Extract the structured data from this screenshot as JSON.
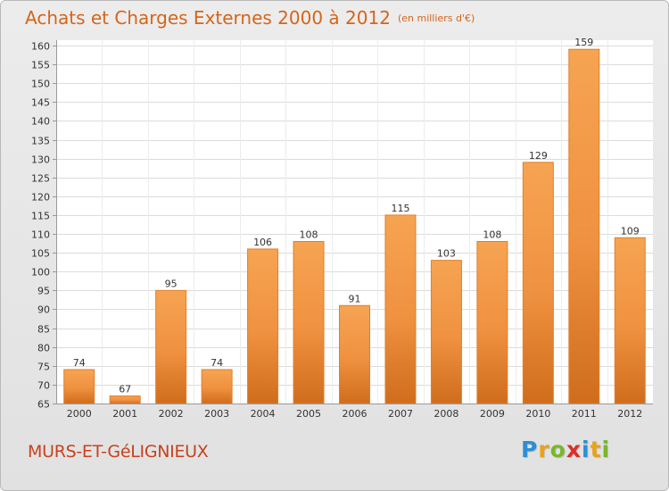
{
  "header": {
    "title": "Achats et Charges Externes 2000 à 2012",
    "subtitle": "(en milliers d'€)"
  },
  "footer": {
    "city": "MURS-ET-GéLIGNIEUX",
    "logo_letters": [
      {
        "ch": "P",
        "color": "#2c8fd6"
      },
      {
        "ch": "r",
        "color": "#e8a317"
      },
      {
        "ch": "o",
        "color": "#7ab62e"
      },
      {
        "ch": "x",
        "color": "#d9302a"
      },
      {
        "ch": "i",
        "color": "#2c8fd6"
      },
      {
        "ch": "t",
        "color": "#e8a317"
      },
      {
        "ch": "i",
        "color": "#7ab62e"
      }
    ]
  },
  "chart_data": {
    "type": "bar",
    "title": "Achats et Charges Externes 2000 à 2012",
    "subtitle": "(en milliers d'€)",
    "xlabel": "",
    "ylabel": "",
    "categories": [
      "2000",
      "2001",
      "2002",
      "2003",
      "2004",
      "2005",
      "2006",
      "2007",
      "2008",
      "2009",
      "2010",
      "2011",
      "2012"
    ],
    "values": [
      74,
      67,
      95,
      74,
      106,
      108,
      91,
      115,
      103,
      108,
      129,
      159,
      109
    ],
    "ylim": [
      65,
      160
    ],
    "yticks": [
      65,
      70,
      75,
      80,
      85,
      90,
      95,
      100,
      105,
      110,
      115,
      120,
      125,
      130,
      135,
      140,
      145,
      150,
      155,
      160
    ],
    "grid": true,
    "bar_color": "#f0913f",
    "legend": "none"
  }
}
